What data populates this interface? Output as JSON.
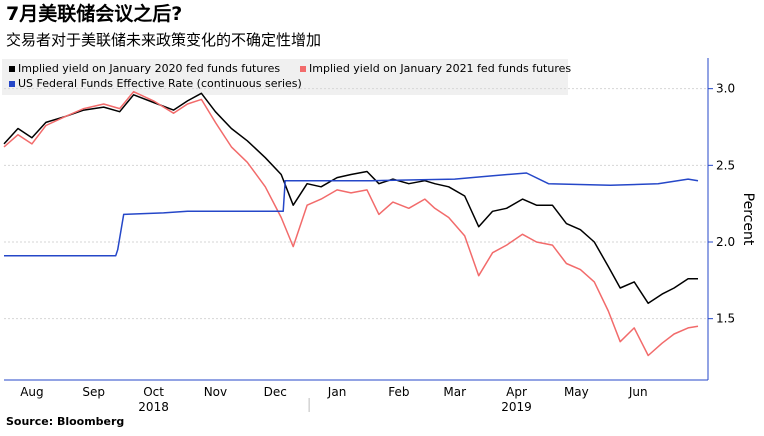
{
  "title": "7月美联储会议之后?",
  "subtitle": "交易者对于美联储未来政策变化的不确定性增加",
  "source": "Source: Bloomberg",
  "chart_data": {
    "type": "line",
    "ylabel": "Percent",
    "ylim": [
      1.1,
      3.2
    ],
    "yticks": [
      1.5,
      2.0,
      2.5,
      3.0
    ],
    "ytick_labels": [
      "1.5",
      "2.0",
      "2.5",
      "3.0"
    ],
    "y_axis_position": "right",
    "legend_position": "top-left",
    "x_range": [
      "2018-08-01",
      "2019-07-20"
    ],
    "months": [
      {
        "label": "Aug",
        "date": "2018-08-15"
      },
      {
        "label": "Sep",
        "date": "2018-09-15"
      },
      {
        "label": "Oct",
        "date": "2018-10-15"
      },
      {
        "label": "Nov",
        "date": "2018-11-15"
      },
      {
        "label": "Dec",
        "date": "2018-12-15"
      },
      {
        "label": "Jan",
        "date": "2019-01-15"
      },
      {
        "label": "Feb",
        "date": "2019-02-15"
      },
      {
        "label": "Mar",
        "date": "2019-03-15"
      },
      {
        "label": "Apr",
        "date": "2019-04-15"
      },
      {
        "label": "May",
        "date": "2019-05-15"
      },
      {
        "label": "Jun",
        "date": "2019-06-15"
      }
    ],
    "years": [
      {
        "label": "2018",
        "date": "2018-10-15"
      },
      {
        "label": "2019",
        "date": "2019-04-15"
      }
    ],
    "year_divider_date": "2019-01-01",
    "series": [
      {
        "name": "Implied yield on January 2020 fed funds futures",
        "color": "#000000",
        "points": [
          [
            "2018-08-01",
            2.64
          ],
          [
            "2018-08-08",
            2.74
          ],
          [
            "2018-08-15",
            2.68
          ],
          [
            "2018-08-22",
            2.78
          ],
          [
            "2018-09-01",
            2.82
          ],
          [
            "2018-09-10",
            2.86
          ],
          [
            "2018-09-20",
            2.88
          ],
          [
            "2018-09-28",
            2.85
          ],
          [
            "2018-10-05",
            2.96
          ],
          [
            "2018-10-15",
            2.91
          ],
          [
            "2018-10-25",
            2.86
          ],
          [
            "2018-11-01",
            2.92
          ],
          [
            "2018-11-08",
            2.97
          ],
          [
            "2018-11-15",
            2.85
          ],
          [
            "2018-11-23",
            2.74
          ],
          [
            "2018-12-01",
            2.66
          ],
          [
            "2018-12-10",
            2.55
          ],
          [
            "2018-12-18",
            2.44
          ],
          [
            "2018-12-24",
            2.24
          ],
          [
            "2018-12-31",
            2.38
          ],
          [
            "2019-01-07",
            2.36
          ],
          [
            "2019-01-15",
            2.42
          ],
          [
            "2019-01-22",
            2.44
          ],
          [
            "2019-01-30",
            2.46
          ],
          [
            "2019-02-05",
            2.38
          ],
          [
            "2019-02-12",
            2.41
          ],
          [
            "2019-02-20",
            2.38
          ],
          [
            "2019-02-28",
            2.4
          ],
          [
            "2019-03-05",
            2.38
          ],
          [
            "2019-03-12",
            2.36
          ],
          [
            "2019-03-20",
            2.3
          ],
          [
            "2019-03-27",
            2.1
          ],
          [
            "2019-04-03",
            2.2
          ],
          [
            "2019-04-10",
            2.22
          ],
          [
            "2019-04-18",
            2.28
          ],
          [
            "2019-04-25",
            2.24
          ],
          [
            "2019-05-03",
            2.24
          ],
          [
            "2019-05-10",
            2.12
          ],
          [
            "2019-05-17",
            2.08
          ],
          [
            "2019-05-24",
            2.0
          ],
          [
            "2019-05-31",
            1.84
          ],
          [
            "2019-06-06",
            1.7
          ],
          [
            "2019-06-13",
            1.74
          ],
          [
            "2019-06-20",
            1.6
          ],
          [
            "2019-06-27",
            1.66
          ],
          [
            "2019-07-03",
            1.7
          ],
          [
            "2019-07-10",
            1.76
          ],
          [
            "2019-07-15",
            1.76
          ]
        ]
      },
      {
        "name": "Implied yield on January 2021 fed funds futures",
        "color": "#f26b6b",
        "points": [
          [
            "2018-08-01",
            2.62
          ],
          [
            "2018-08-08",
            2.7
          ],
          [
            "2018-08-15",
            2.64
          ],
          [
            "2018-08-22",
            2.76
          ],
          [
            "2018-09-01",
            2.82
          ],
          [
            "2018-09-10",
            2.87
          ],
          [
            "2018-09-20",
            2.9
          ],
          [
            "2018-09-28",
            2.87
          ],
          [
            "2018-10-05",
            2.98
          ],
          [
            "2018-10-15",
            2.92
          ],
          [
            "2018-10-25",
            2.84
          ],
          [
            "2018-11-01",
            2.9
          ],
          [
            "2018-11-08",
            2.93
          ],
          [
            "2018-11-15",
            2.78
          ],
          [
            "2018-11-23",
            2.62
          ],
          [
            "2018-12-01",
            2.52
          ],
          [
            "2018-12-10",
            2.36
          ],
          [
            "2018-12-18",
            2.16
          ],
          [
            "2018-12-24",
            1.97
          ],
          [
            "2018-12-31",
            2.24
          ],
          [
            "2019-01-07",
            2.28
          ],
          [
            "2019-01-15",
            2.34
          ],
          [
            "2019-01-22",
            2.32
          ],
          [
            "2019-01-30",
            2.34
          ],
          [
            "2019-02-05",
            2.18
          ],
          [
            "2019-02-12",
            2.26
          ],
          [
            "2019-02-20",
            2.22
          ],
          [
            "2019-02-28",
            2.28
          ],
          [
            "2019-03-05",
            2.22
          ],
          [
            "2019-03-12",
            2.16
          ],
          [
            "2019-03-20",
            2.04
          ],
          [
            "2019-03-27",
            1.78
          ],
          [
            "2019-04-03",
            1.93
          ],
          [
            "2019-04-10",
            1.98
          ],
          [
            "2019-04-18",
            2.05
          ],
          [
            "2019-04-25",
            2.0
          ],
          [
            "2019-05-03",
            1.98
          ],
          [
            "2019-05-10",
            1.86
          ],
          [
            "2019-05-17",
            1.82
          ],
          [
            "2019-05-24",
            1.74
          ],
          [
            "2019-05-31",
            1.55
          ],
          [
            "2019-06-06",
            1.35
          ],
          [
            "2019-06-13",
            1.44
          ],
          [
            "2019-06-20",
            1.26
          ],
          [
            "2019-06-27",
            1.34
          ],
          [
            "2019-07-03",
            1.4
          ],
          [
            "2019-07-10",
            1.44
          ],
          [
            "2019-07-15",
            1.45
          ]
        ]
      },
      {
        "name": "US Federal Funds Effective Rate (continuous series)",
        "color": "#2547c8",
        "points": [
          [
            "2018-08-01",
            1.91
          ],
          [
            "2018-09-26",
            1.91
          ],
          [
            "2018-09-27",
            1.95
          ],
          [
            "2018-09-30",
            2.18
          ],
          [
            "2018-10-20",
            2.19
          ],
          [
            "2018-11-01",
            2.2
          ],
          [
            "2018-12-19",
            2.2
          ],
          [
            "2018-12-20",
            2.4
          ],
          [
            "2019-02-01",
            2.4
          ],
          [
            "2019-03-15",
            2.41
          ],
          [
            "2019-04-01",
            2.43
          ],
          [
            "2019-04-20",
            2.45
          ],
          [
            "2019-05-01",
            2.38
          ],
          [
            "2019-06-01",
            2.37
          ],
          [
            "2019-06-25",
            2.38
          ],
          [
            "2019-07-10",
            2.41
          ],
          [
            "2019-07-15",
            2.4
          ]
        ]
      }
    ]
  }
}
